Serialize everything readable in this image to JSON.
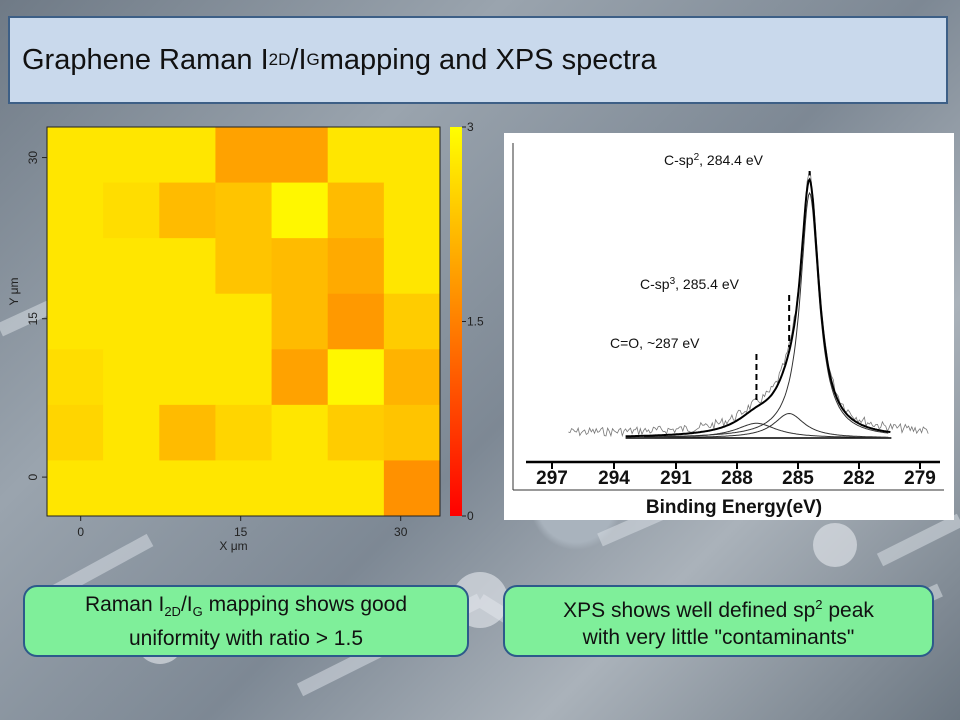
{
  "title": {
    "pre": "Graphene Raman I",
    "sub1": "2D",
    "mid": "/I",
    "sub2": "G",
    "post": " mapping and XPS spectra"
  },
  "callouts": {
    "left": {
      "pre": "Raman I",
      "sub1": "2D",
      "mid": "/I",
      "sub2": "G",
      "post": " mapping shows good",
      "line2": "uniformity with ratio > 1.5"
    },
    "right": {
      "pre": "XPS shows well defined sp",
      "sup": "2",
      "post": " peak",
      "line2": "with very little \"contaminants\""
    }
  },
  "colors": {
    "title_bg": "#c9d9ec",
    "title_border": "#3d5f86",
    "callout_bg": "#7fef9a",
    "callout_border": "#2d5a8a"
  },
  "chart_data": [
    {
      "type": "heatmap",
      "xlabel": "X μm",
      "ylabel": "Y μm",
      "x_ticks": [
        "0",
        "15",
        "30"
      ],
      "y_ticks": [
        "30",
        "15",
        "0"
      ],
      "colorbar": {
        "min": 0,
        "max": 3,
        "ticks": [
          "3",
          "1.5",
          "0"
        ],
        "colors": [
          "#ff0000",
          "#ff8000",
          "#ffff00"
        ]
      },
      "grid_rows": 7,
      "grid_cols": 7,
      "values": [
        [
          2.7,
          2.7,
          2.7,
          1.9,
          1.9,
          2.7,
          2.7
        ],
        [
          2.7,
          2.6,
          2.2,
          2.3,
          2.9,
          2.2,
          2.7
        ],
        [
          2.7,
          2.7,
          2.7,
          2.3,
          2.2,
          2.0,
          2.7
        ],
        [
          2.7,
          2.7,
          2.7,
          2.7,
          2.2,
          1.8,
          2.4
        ],
        [
          2.6,
          2.7,
          2.7,
          2.7,
          1.9,
          2.9,
          2.1
        ],
        [
          2.5,
          2.7,
          2.2,
          2.5,
          2.7,
          2.4,
          2.3
        ],
        [
          2.7,
          2.7,
          2.7,
          2.7,
          2.7,
          2.7,
          1.7
        ]
      ]
    },
    {
      "type": "line",
      "xlabel": "Binding Energy(eV)",
      "x_ticks": [
        "297",
        "294",
        "291",
        "288",
        "285",
        "282",
        "279"
      ],
      "xlim": [
        297,
        279
      ],
      "annotations": [
        {
          "pre": "C-sp",
          "sup": "2",
          "post": ", 284.4 eV",
          "x": 284.4
        },
        {
          "pre": "C-sp",
          "sup": "3",
          "post": ", 285.4 eV",
          "x": 285.4
        },
        {
          "pre": "C=O, ~287 eV",
          "sup": "",
          "post": "",
          "x": 287
        }
      ],
      "peaks": [
        {
          "name": "C-sp2",
          "center": 284.4,
          "height": 1.0,
          "width": 0.55
        },
        {
          "name": "C-sp3",
          "center": 285.4,
          "height": 0.1,
          "width": 0.9
        },
        {
          "name": "C=O",
          "center": 287.0,
          "height": 0.06,
          "width": 1.2
        }
      ]
    }
  ]
}
